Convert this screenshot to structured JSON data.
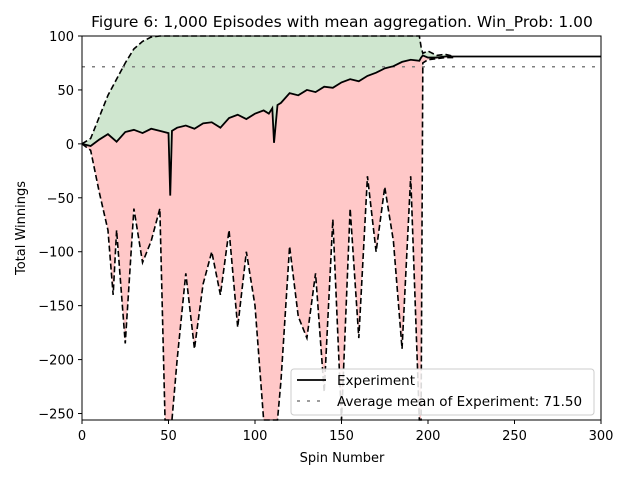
{
  "chart_data": {
    "type": "line",
    "title": "Figure 6: 1,000 Episodes with mean aggregation. Win_Prob: 1.00",
    "xlabel": "Spin Number",
    "ylabel": "Total Winnings",
    "xlim": [
      0,
      300
    ],
    "ylim": [
      -256,
      100
    ],
    "x_ticks": [
      0,
      50,
      100,
      150,
      200,
      250,
      300
    ],
    "y_ticks": [
      100,
      50,
      0,
      -50,
      -100,
      -150,
      -200,
      -250
    ],
    "legend_position": "lower-right",
    "grid": false,
    "colors": {
      "mean_line": "#000000",
      "std_band_lines": "#000000",
      "upper_fill": "#cfe6cf",
      "lower_fill": "#ffc8c8",
      "reference_line": "#7f7f7f"
    },
    "series": [
      {
        "name": "Experiment",
        "style": "solid",
        "x": [
          0,
          5,
          10,
          15,
          20,
          25,
          30,
          35,
          40,
          45,
          50,
          51,
          52,
          55,
          60,
          65,
          70,
          75,
          80,
          85,
          90,
          95,
          100,
          105,
          108,
          110,
          111,
          113,
          115,
          120,
          125,
          130,
          135,
          140,
          145,
          150,
          155,
          160,
          165,
          170,
          175,
          180,
          185,
          190,
          195,
          196,
          197,
          200,
          205,
          210,
          215,
          220,
          250,
          300
        ],
        "values": [
          0,
          -2,
          4,
          9,
          2,
          11,
          13,
          10,
          14,
          12,
          10,
          -48,
          12,
          15,
          17,
          14,
          19,
          20,
          15,
          24,
          27,
          23,
          28,
          31,
          28,
          33,
          1,
          36,
          38,
          47,
          45,
          50,
          48,
          53,
          52,
          57,
          60,
          58,
          63,
          66,
          70,
          72,
          76,
          78,
          77,
          80,
          82,
          80,
          80,
          81,
          81,
          81,
          81,
          81
        ]
      },
      {
        "name": "",
        "style": "dashed",
        "role": "upper-band",
        "x": [
          0,
          5,
          10,
          15,
          20,
          25,
          30,
          35,
          40,
          45,
          50,
          55,
          60,
          65,
          70,
          75,
          80,
          85,
          90,
          95,
          100,
          105,
          110,
          115,
          120,
          125,
          130,
          135,
          140,
          145,
          150,
          155,
          160,
          165,
          170,
          175,
          180,
          185,
          190,
          195,
          196,
          197,
          200,
          205,
          210,
          215
        ],
        "values": [
          0,
          5,
          25,
          45,
          60,
          75,
          88,
          95,
          99,
          100,
          100,
          100,
          100,
          100,
          100,
          100,
          100,
          100,
          100,
          100,
          100,
          100,
          100,
          100,
          100,
          100,
          100,
          100,
          100,
          100,
          100,
          100,
          100,
          100,
          100,
          100,
          100,
          100,
          100,
          100,
          90,
          84,
          86,
          82,
          83,
          81
        ]
      },
      {
        "name": "",
        "style": "dashed",
        "role": "lower-band",
        "x": [
          0,
          5,
          10,
          15,
          18,
          20,
          25,
          30,
          35,
          40,
          45,
          48,
          50,
          52,
          55,
          60,
          65,
          70,
          75,
          80,
          85,
          90,
          95,
          100,
          105,
          108,
          110,
          113,
          115,
          120,
          125,
          130,
          135,
          140,
          145,
          150,
          155,
          160,
          165,
          170,
          175,
          180,
          185,
          190,
          195,
          196,
          197,
          200,
          205,
          210,
          215
        ],
        "values": [
          0,
          -6,
          -45,
          -80,
          -140,
          -80,
          -185,
          -60,
          -110,
          -90,
          -60,
          -256,
          -256,
          -256,
          -200,
          -120,
          -190,
          -130,
          -100,
          -140,
          -80,
          -170,
          -100,
          -150,
          -256,
          -256,
          -256,
          -256,
          -220,
          -95,
          -160,
          -180,
          -120,
          -230,
          -70,
          -256,
          -60,
          -180,
          -30,
          -100,
          -40,
          -90,
          -190,
          -30,
          -256,
          -256,
          75,
          78,
          79,
          80,
          80
        ]
      },
      {
        "name": "Average mean of Experiment: 71.50",
        "style": "dashed",
        "role": "reference",
        "x": [
          0,
          300
        ],
        "values": [
          71.5,
          71.5
        ]
      }
    ]
  },
  "legend": {
    "items": [
      {
        "label": "Experiment"
      },
      {
        "label": "Average mean of Experiment: 71.50"
      }
    ]
  }
}
